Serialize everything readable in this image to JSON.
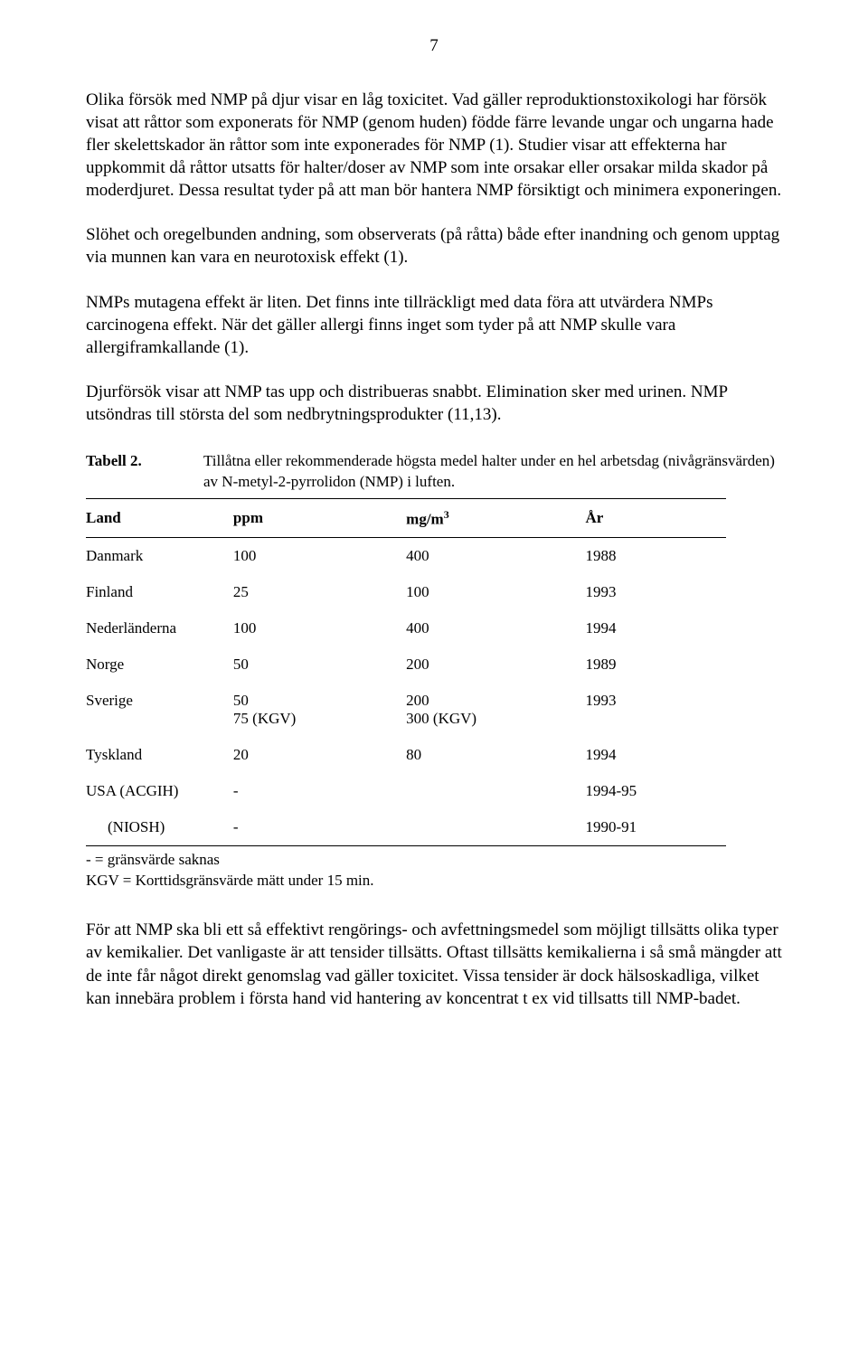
{
  "page_number": "7",
  "paragraphs": {
    "p1": "Olika försök med NMP på djur visar en låg toxicitet. Vad gäller reproduktionstoxikologi har försök visat att råttor som exponerats för NMP (genom huden) födde färre levande ungar och ungarna hade fler skelettskador än råttor som inte exponerades för NMP (1). Studier visar att effekterna har uppkommit då råttor utsatts för halter/doser av NMP som inte orsakar eller orsakar milda skador på moderdjuret. Dessa resultat tyder på att man bör hantera NMP försiktigt och minimera exponeringen.",
    "p2": "Slöhet och oregelbunden andning, som observerats (på råtta) både efter inandning och genom upptag via munnen kan vara en neurotoxisk effekt (1).",
    "p3": "NMPs mutagena effekt är liten. Det finns inte tillräckligt med data föra att utvärdera NMPs carcinogena effekt. När det gäller allergi finns inget som tyder på att NMP skulle vara allergiframkallande (1).",
    "p4": "Djurförsök visar att NMP tas upp och distribueras snabbt. Elimination sker med urinen. NMP utsöndras till största del som nedbrytningsprodukter (11,13).",
    "p5": "För att NMP ska bli ett så effektivt rengörings- och avfettningsmedel som möjligt tillsätts olika typer av kemikalier. Det vanligaste är att tensider tillsätts. Oftast tillsätts kemikalierna i så små mängder att de inte får något direkt genomslag vad gäller toxicitet. Vissa tensider är dock hälsoskadliga, vilket kan innebära problem i första hand vid hantering av koncentrat t ex vid tillsatts till NMP-badet."
  },
  "table": {
    "label": "Tabell 2.",
    "caption": "Tillåtna eller rekommenderade högsta medel halter under en hel arbetsdag (nivågränsvärden) av N-metyl-2-pyrrolidon (NMP) i luften.",
    "type": "table",
    "columns": [
      {
        "key": "land",
        "header": "Land"
      },
      {
        "key": "ppm",
        "header": "ppm"
      },
      {
        "key": "mg",
        "header_prefix": "mg/m",
        "header_sup": "3"
      },
      {
        "key": "year",
        "header": "År"
      }
    ],
    "rows": [
      {
        "land": "Danmark",
        "ppm": "100",
        "mg": "400",
        "year": "1988"
      },
      {
        "land": "Finland",
        "ppm": "25",
        "mg": "100",
        "year": "1993"
      },
      {
        "land": "Nederländerna",
        "ppm": "100",
        "mg": "400",
        "year": "1994"
      },
      {
        "land": "Norge",
        "ppm": "50",
        "mg": "200",
        "year": "1989"
      },
      {
        "land": "Sverige",
        "ppm": "50",
        "mg": "200",
        "year": "1993",
        "ppm_extra": "75 (KGV)",
        "mg_extra": "300 (KGV)"
      },
      {
        "land": "Tyskland",
        "ppm": "20",
        "mg": "80",
        "year": "1994"
      },
      {
        "land": "USA (ACGIH)",
        "ppm": "-",
        "mg": "",
        "year": "1994-95"
      },
      {
        "land": "(NIOSH)",
        "ppm": "-",
        "mg": "",
        "year": "1990-91",
        "indent": true
      }
    ],
    "footnote1": "- = gränsvärde saknas",
    "footnote2": "KGV = Korttidsgränsvärde mätt under 15 min.",
    "fontsize_body": 17,
    "fontsize_header": 17,
    "border_color": "#000000",
    "background_color": "#ffffff"
  }
}
